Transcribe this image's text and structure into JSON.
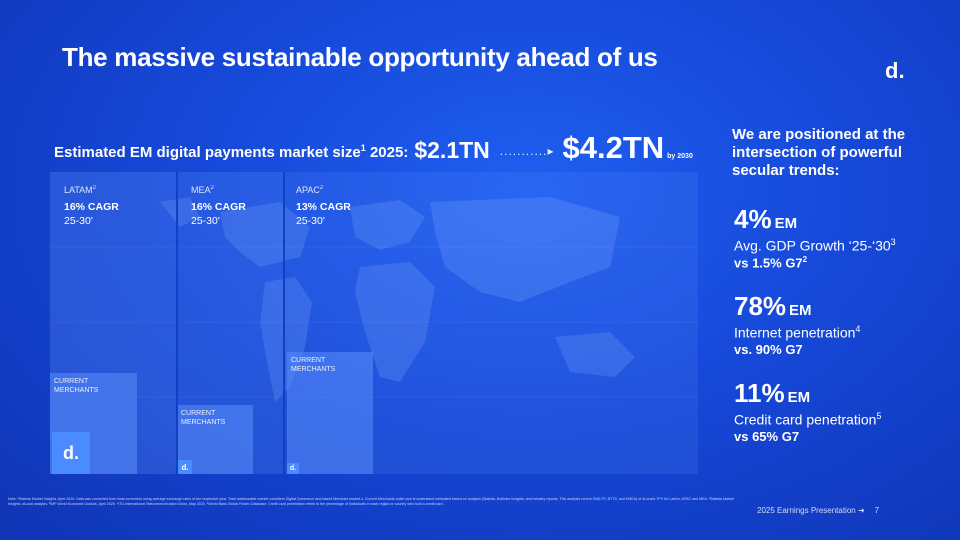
{
  "title": "The massive sustainable opportunity ahead of us",
  "logo": "d.",
  "market": {
    "label": "Estimated EM digital payments market size",
    "label_sup": "1",
    "label_suffix": " 2025:",
    "value_2025": "$2.1TN",
    "dots": "...........▸",
    "value_2030": "$4.2TN",
    "by_2030": "by 2030"
  },
  "regions": [
    {
      "name": "LATAM",
      "sup": "2",
      "cagr": "16% CAGR",
      "years": "25-30'"
    },
    {
      "name": "MEA",
      "sup": "2",
      "cagr": "16% CAGR",
      "years": "25-30'"
    },
    {
      "name": "APAC",
      "sup": "2",
      "cagr": "13% CAGR",
      "years": "25-30'"
    }
  ],
  "merchants_label_1": "CURRENT",
  "merchants_label_2": "MERCHANTS",
  "badge_logo": "d.",
  "right": {
    "heading": "We are positioned at the intersection of powerful secular trends:",
    "stats": [
      {
        "big": "4%",
        "em": "EM",
        "desc": "Avg. GDP Growth ‘25-‘30",
        "desc_sup": "3",
        "comp": "vs 1.5% G7",
        "comp_sup": "2"
      },
      {
        "big": "78%",
        "em": "EM",
        "desc": "Internet penetration",
        "desc_sup": "4",
        "comp": "vs. 90% G7",
        "comp_sup": ""
      },
      {
        "big": "11%",
        "em": "EM",
        "desc": "Credit card penetration",
        "desc_sup": "5",
        "comp": "vs 65% G7",
        "comp_sup": ""
      }
    ]
  },
  "note": "Note: ¹Statista Market Insights, April 2025. Data was converted from local currencies using average exchange rates of the respective year. Total addressable market considers Digital Commerce and based Merchant market s. Current Merchants outlet size is understand estimated based on analysis (Statista, Bofinder Insights, and industry reports. This analysis covers EM(LTS, BTTS, and EMEA) of dLocal's TPV for LatAm, APAC and MEA. ²Statista Market Insights, dLocal analysis. ³IMF World Economic Outlook, April 2025. ⁴ITU International Telecommunication Union, May 2025. ⁵World Bank Global Findex Database. Credit card penetration refers to the percentage of individuals in each region or country who hold a credit card.",
  "footer": {
    "text": "2025 Earnings Presentation ➜",
    "page": "7"
  },
  "colors": {
    "background": "#1648d8",
    "badge": "#4a8cff",
    "text": "#ffffff"
  }
}
